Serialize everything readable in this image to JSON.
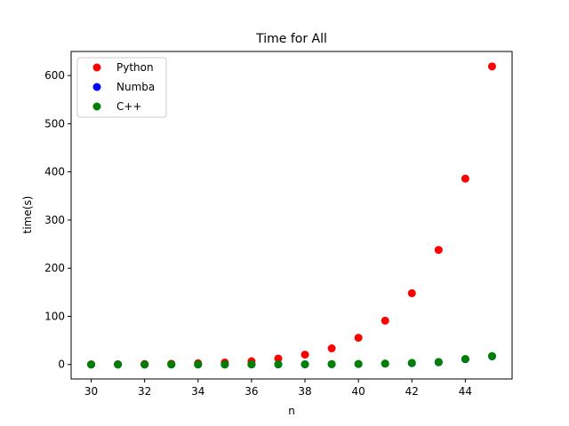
{
  "chart_data": {
    "type": "scatter",
    "title": "Time for All",
    "xlabel": "n",
    "ylabel": "time(s)",
    "xlim": [
      29.25,
      45.75
    ],
    "ylim": [
      -30,
      650
    ],
    "xticks": [
      30,
      32,
      34,
      36,
      38,
      40,
      42,
      44
    ],
    "yticks": [
      0,
      100,
      200,
      300,
      400,
      500,
      600
    ],
    "grid": false,
    "legend_position": "top-left",
    "x": [
      30,
      31,
      32,
      33,
      34,
      35,
      36,
      37,
      38,
      39,
      40,
      41,
      42,
      43,
      44,
      45
    ],
    "series": [
      {
        "name": "Python",
        "color": "#ff0000",
        "values": [
          0.4,
          0.6,
          1.0,
          1.6,
          2.6,
          4.2,
          6.8,
          12.5,
          20.5,
          33.5,
          55.5,
          91,
          148,
          238,
          386,
          619
        ]
      },
      {
        "name": "Numba",
        "color": "#0000ff",
        "values": [
          0.0,
          0.0,
          0.0,
          0.1,
          0.1,
          0.1,
          0.2,
          0.3,
          0.4,
          0.7,
          1.1,
          1.8,
          2.9,
          4.7,
          11,
          17
        ]
      },
      {
        "name": "C++",
        "color": "#008000",
        "values": [
          0.0,
          0.0,
          0.0,
          0.1,
          0.1,
          0.1,
          0.2,
          0.3,
          0.5,
          0.8,
          1.2,
          2.0,
          3.3,
          5.3,
          11.5,
          17.5
        ]
      }
    ]
  }
}
